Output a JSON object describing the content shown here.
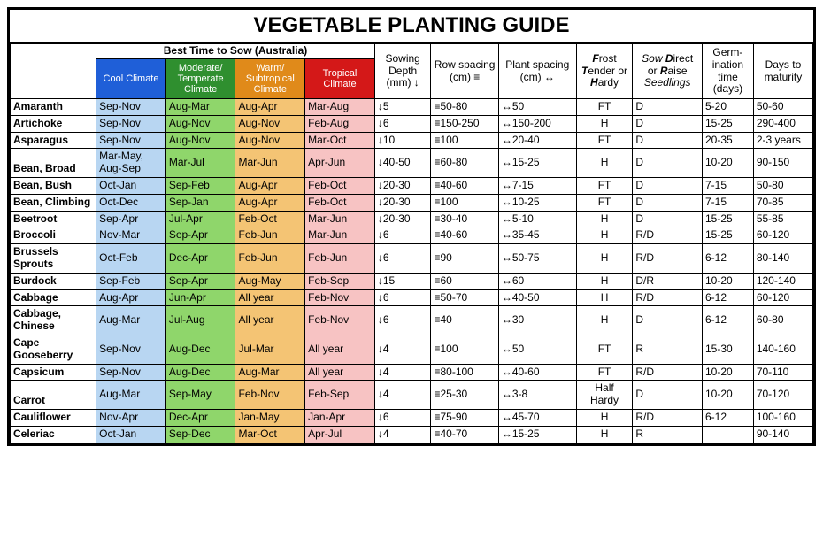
{
  "title": "VEGETABLE PLANTING GUIDE",
  "sow_group_label": "Best Time to Sow (Australia)",
  "climates": [
    {
      "label": "Cool Climate",
      "bg": "#1f5fd8",
      "fg": "#ffffff",
      "cell_bg": "#b8d6f2"
    },
    {
      "label": "Moderate/ Temperate Climate",
      "bg": "#2f8f2f",
      "fg": "#ffffff",
      "cell_bg": "#8fd66b"
    },
    {
      "label": "Warm/ Subtropical Climate",
      "bg": "#e08a1a",
      "fg": "#ffffff",
      "cell_bg": "#f4c474"
    },
    {
      "label": "Tropical Climate",
      "bg": "#d41818",
      "fg": "#ffffff",
      "cell_bg": "#f7c3c3"
    }
  ],
  "column_headers": {
    "depth": "Sowing Depth (mm) ↓",
    "row": "Row spacing (cm) ≡",
    "plant": "Plant spacing (cm) ↔",
    "frost": "<b><i>F</i></b>rost <b><i>T</i></b>ender or <b><i>H</i></b>ardy",
    "sow": "<i>Sow</i> <b><i>D</i></b>irect or <b><i>R</i></b>aise <i>Seedlings</i>",
    "germ": "Germ-ination time (days)",
    "maturity": "Days to maturity"
  },
  "symbols": {
    "depth": "↓",
    "row": "≡",
    "plant": "↔"
  },
  "rows": [
    {
      "veg": "Amaranth",
      "c": [
        "Sep-Nov",
        "Aug-Mar",
        "Aug-Apr",
        "Mar-Aug"
      ],
      "depth": "5",
      "row": "50-80",
      "plant": "50",
      "frost": "FT",
      "sow": "D",
      "germ": "5-20",
      "mat": "50-60"
    },
    {
      "veg": "Artichoke",
      "c": [
        "Sep-Nov",
        "Aug-Nov",
        "Aug-Nov",
        "Feb-Aug"
      ],
      "depth": "6",
      "row": "150-250",
      "plant": "150-200",
      "frost": "H",
      "sow": "D",
      "germ": "15-25",
      "mat": "290-400"
    },
    {
      "veg": "Asparagus",
      "c": [
        "Sep-Nov",
        "Aug-Nov",
        "Aug-Nov",
        "Mar-Oct"
      ],
      "depth": "10",
      "row": "100",
      "plant": "20-40",
      "frost": "FT",
      "sow": "D",
      "germ": "20-35",
      "mat": "2-3 years"
    },
    {
      "veg": "Bean, Broad",
      "c": [
        "Mar-May, Aug-Sep",
        "Mar-Jul",
        "Mar-Jun",
        "Apr-Jun"
      ],
      "depth": "40-50",
      "row": "60-80",
      "plant": "15-25",
      "frost": "H",
      "sow": "D",
      "germ": "10-20",
      "mat": "90-150"
    },
    {
      "veg": "Bean, Bush",
      "c": [
        "Oct-Jan",
        "Sep-Feb",
        "Aug-Apr",
        "Feb-Oct"
      ],
      "depth": "20-30",
      "row": "40-60",
      "plant": "7-15",
      "frost": "FT",
      "sow": "D",
      "germ": "7-15",
      "mat": "50-80"
    },
    {
      "veg": "Bean, Climbing",
      "c": [
        "Oct-Dec",
        "Sep-Jan",
        "Aug-Apr",
        "Feb-Oct"
      ],
      "depth": "20-30",
      "row": "100",
      "plant": "10-25",
      "frost": "FT",
      "sow": "D",
      "germ": "7-15",
      "mat": "70-85"
    },
    {
      "veg": "Beetroot",
      "c": [
        "Sep-Apr",
        "Jul-Apr",
        "Feb-Oct",
        "Mar-Jun"
      ],
      "depth": "20-30",
      "row": "30-40",
      "plant": "5-10",
      "frost": "H",
      "sow": "D",
      "germ": "15-25",
      "mat": "55-85"
    },
    {
      "veg": "Broccoli",
      "c": [
        "Nov-Mar",
        "Sep-Apr",
        "Feb-Jun",
        "Mar-Jun"
      ],
      "depth": "6",
      "row": "40-60",
      "plant": "35-45",
      "frost": "H",
      "sow": "R/D",
      "germ": "15-25",
      "mat": "60-120"
    },
    {
      "veg": "Brussels Sprouts",
      "c": [
        "Oct-Feb",
        "Dec-Apr",
        "Feb-Jun",
        "Feb-Jun"
      ],
      "depth": "6",
      "row": "90",
      "plant": "50-75",
      "frost": "H",
      "sow": "R/D",
      "germ": "6-12",
      "mat": "80-140"
    },
    {
      "veg": "Burdock",
      "c": [
        "Sep-Feb",
        "Sep-Apr",
        "Aug-May",
        "Feb-Sep"
      ],
      "depth": "15",
      "row": "60",
      "plant": "60",
      "frost": "H",
      "sow": "D/R",
      "germ": "10-20",
      "mat": "120-140"
    },
    {
      "veg": "Cabbage",
      "c": [
        "Aug-Apr",
        "Jun-Apr",
        "All year",
        "Feb-Nov"
      ],
      "depth": "6",
      "row": "50-70",
      "plant": "40-50",
      "frost": "H",
      "sow": "R/D",
      "germ": "6-12",
      "mat": "60-120"
    },
    {
      "veg": "Cabbage, Chinese",
      "c": [
        "Aug-Mar",
        "Jul-Aug",
        "All year",
        "Feb-Nov"
      ],
      "depth": "6",
      "row": "40",
      "plant": "30",
      "frost": "H",
      "sow": "D",
      "germ": "6-12",
      "mat": "60-80"
    },
    {
      "veg": "Cape Gooseberry",
      "c": [
        "Sep-Nov",
        "Aug-Dec",
        "Jul-Mar",
        "All year"
      ],
      "depth": "4",
      "row": "100",
      "plant": "50",
      "frost": "FT",
      "sow": "R",
      "germ": "15-30",
      "mat": "140-160"
    },
    {
      "veg": "Capsicum",
      "c": [
        "Sep-Nov",
        "Aug-Dec",
        "Aug-Mar",
        "All year"
      ],
      "depth": "4",
      "row": "80-100",
      "plant": "40-60",
      "frost": "FT",
      "sow": "R/D",
      "germ": "10-20",
      "mat": "70-110"
    },
    {
      "veg": "Carrot",
      "c": [
        "Aug-Mar",
        "Sep-May",
        "Feb-Nov",
        "Feb-Sep"
      ],
      "depth": "4",
      "row": "25-30",
      "plant": "3-8",
      "frost": "Half Hardy",
      "sow": "D",
      "germ": "10-20",
      "mat": "70-120"
    },
    {
      "veg": "Cauliflower",
      "c": [
        "Nov-Apr",
        "Dec-Apr",
        "Jan-May",
        "Jan-Apr"
      ],
      "depth": "6",
      "row": "75-90",
      "plant": "45-70",
      "frost": "H",
      "sow": "R/D",
      "germ": "6-12",
      "mat": "100-160"
    },
    {
      "veg": "Celeriac",
      "c": [
        "Oct-Jan",
        "Sep-Dec",
        "Mar-Oct",
        "Apr-Jul"
      ],
      "depth": "4",
      "row": "40-70",
      "plant": "15-25",
      "frost": "H",
      "sow": "R",
      "germ": "",
      "mat": "90-140"
    }
  ]
}
